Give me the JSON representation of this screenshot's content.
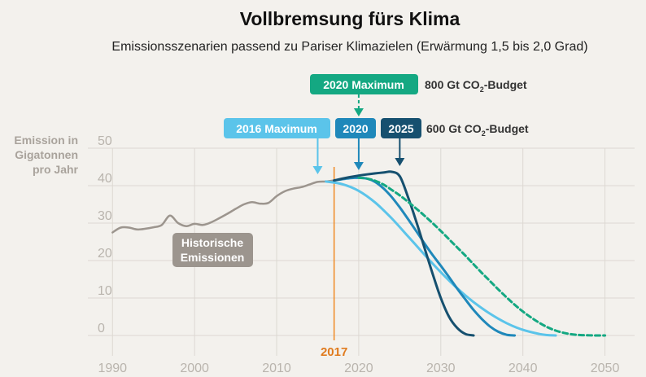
{
  "chart_data": {
    "type": "line",
    "title": "Vollbremsung fürs Klima",
    "subtitle": "Emissionsszenarien passend zu Pariser Klimazielen (Erwärmung 1,5 bis 2,0 Grad)",
    "ylabel": [
      "Emission in",
      "Gigatonnen",
      "pro Jahr"
    ],
    "x_ticks": [
      1990,
      2000,
      2010,
      2020,
      2030,
      2040,
      2050
    ],
    "y_ticks": [
      0,
      10,
      20,
      30,
      40,
      50
    ],
    "xlim": [
      1987,
      2055
    ],
    "ylim": [
      0,
      50
    ],
    "grid": true,
    "marker": {
      "year": 2017,
      "label": "2017",
      "color": "#f08a24"
    },
    "series": [
      {
        "name": "Historische Emissionen",
        "color": "#9c958e",
        "dashed": false,
        "x": [
          1990,
          1991,
          1992,
          1993,
          1994,
          1995,
          1996,
          1997,
          1998,
          1999,
          2000,
          2001,
          2002,
          2003,
          2004,
          2005,
          2006,
          2007,
          2008,
          2009,
          2010,
          2011,
          2012,
          2013,
          2014,
          2015,
          2016,
          2017
        ],
        "y": [
          27.5,
          28.8,
          28.8,
          28.3,
          28.5,
          28.9,
          29.5,
          32.0,
          30.0,
          29.2,
          29.8,
          29.5,
          30.2,
          31.3,
          32.5,
          33.8,
          35.0,
          35.6,
          35.2,
          35.4,
          37.2,
          38.5,
          39.2,
          39.6,
          40.3,
          41.0,
          41.1,
          41.4
        ]
      },
      {
        "name": "2016 Maximum",
        "color": "#5bc4ea",
        "dashed": false,
        "x": [
          2016,
          2018,
          2020,
          2022,
          2024,
          2026,
          2028,
          2030,
          2032,
          2034,
          2036,
          2038,
          2040,
          2042,
          2043,
          2044
        ],
        "y": [
          41.1,
          40.4,
          38.6,
          35.5,
          31.3,
          26.5,
          21.6,
          16.9,
          12.6,
          8.9,
          5.8,
          3.3,
          1.5,
          0.4,
          0.1,
          0
        ]
      },
      {
        "name": "2020",
        "color": "#1f88ba",
        "dashed": false,
        "x": [
          2017,
          2019,
          2020,
          2021,
          2022,
          2023,
          2024,
          2025,
          2026,
          2027,
          2028,
          2029,
          2030,
          2031,
          2032,
          2033,
          2034,
          2035,
          2036,
          2037,
          2038,
          2039
        ],
        "y": [
          41.4,
          42.0,
          42.1,
          41.9,
          41.0,
          39.3,
          37.0,
          34.2,
          31.1,
          27.9,
          24.6,
          21.5,
          18.6,
          15.6,
          12.5,
          9.6,
          6.8,
          4.4,
          2.4,
          1.0,
          0.2,
          0
        ]
      },
      {
        "name": "2025",
        "color": "#16506f",
        "dashed": false,
        "x": [
          2017,
          2019,
          2021,
          2023,
          2024,
          2025,
          2026,
          2027,
          2028,
          2029,
          2030,
          2031,
          2032,
          2033,
          2034
        ],
        "y": [
          41.4,
          42.3,
          43.0,
          43.5,
          43.7,
          42.5,
          37.0,
          30.5,
          23.5,
          16.5,
          10.0,
          5.0,
          2.0,
          0.4,
          0
        ]
      },
      {
        "name": "2020 Maximum",
        "color": "#14a882",
        "dashed": true,
        "x": [
          2020,
          2021,
          2022,
          2023,
          2024,
          2025,
          2026,
          2027,
          2028,
          2029,
          2030,
          2031,
          2032,
          2033,
          2034,
          2035,
          2036,
          2037,
          2038,
          2039,
          2040,
          2041,
          2042,
          2043,
          2044,
          2045,
          2046,
          2047,
          2048,
          2049,
          2050
        ],
        "y": [
          42.1,
          41.9,
          41.3,
          40.3,
          38.9,
          37.4,
          35.7,
          33.9,
          32.0,
          30.0,
          27.9,
          25.7,
          23.5,
          21.3,
          19.0,
          16.7,
          14.5,
          12.3,
          10.2,
          8.2,
          6.4,
          4.8,
          3.4,
          2.2,
          1.3,
          0.7,
          0.3,
          0.1,
          0.05,
          0,
          0
        ]
      }
    ],
    "annotations": [
      {
        "text": "Historische Emissionen",
        "lines": [
          "Historische",
          "Emissionen"
        ],
        "color": "#9c958e"
      },
      {
        "text": "2016 Maximum",
        "color": "#5bc4ea",
        "arrow_year": 2015
      },
      {
        "text": "2020",
        "color": "#1f88ba",
        "arrow_year": 2020
      },
      {
        "text": "2025",
        "color": "#16506f",
        "arrow_year": 2025
      },
      {
        "text": "2020 Maximum",
        "color": "#14a882",
        "arrow_year": 2020,
        "dashed_arrow": true
      },
      {
        "text": "600 Gt CO2-Budget",
        "main": "600 Gt CO",
        "subscript": "2",
        "rest": "-Budget"
      },
      {
        "text": "800 Gt CO2-Budget",
        "main": "800 Gt CO",
        "subscript": "2",
        "rest": "-Budget"
      }
    ]
  }
}
